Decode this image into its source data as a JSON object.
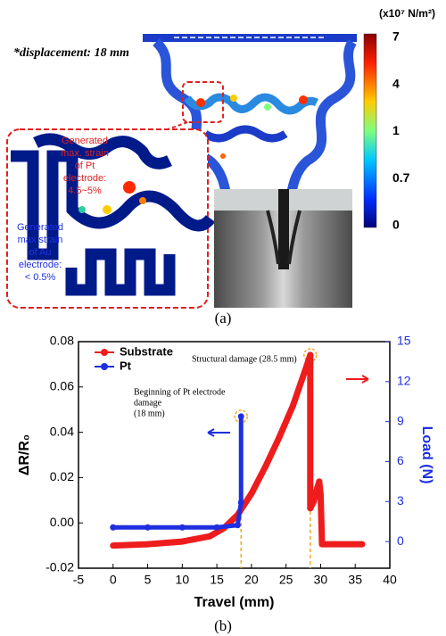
{
  "panel_a": {
    "displacement": "*displacement: 18 mm",
    "colorbar_unit": "(x10⁷ N/m²)",
    "colorbar_labels": [
      7,
      4,
      1,
      0.7,
      0
    ],
    "pt_callout": [
      "Generated",
      "max. strain",
      "of Pt",
      "electrode:",
      "4.5~5%"
    ],
    "au_callout": [
      "Generated",
      "max strain",
      "of Au",
      "electrode:",
      "< 0.5%"
    ],
    "label": "(a)"
  },
  "panel_b_label": "(b)",
  "chart_data": {
    "type": "line",
    "xlabel": "Travel (mm)",
    "ylabel": "ΔR/R₀",
    "y2label": "Load (N)",
    "xlim": [
      -5,
      40
    ],
    "xticks": [
      -5,
      0,
      5,
      10,
      15,
      20,
      25,
      30,
      35,
      40
    ],
    "ylim": [
      -0.02,
      0.08
    ],
    "yticks": [
      -0.02,
      {
        "value": 0,
        "label": "0.00"
      },
      0.02,
      0.04,
      0.06,
      0.08
    ],
    "y2lim": [
      -2,
      15
    ],
    "y2ticks": [
      0,
      3,
      6,
      9,
      12,
      15
    ],
    "legend": "upper left",
    "reference_lines": [
      18.5,
      28.5
    ],
    "annotations": [
      [
        "Structural damage (28.5 mm)"
      ],
      [
        "Beginning  of Pt electrode",
        "damage",
        "(18 mm)"
      ]
    ],
    "series": [
      {
        "name": "Substrate",
        "color": "#ee1c1c",
        "axis": "y2",
        "x": [
          0,
          5,
          10,
          14,
          16,
          18,
          20,
          22,
          24,
          26,
          28,
          28.5,
          28.5,
          29,
          29.5,
          29.8,
          30,
          30.2,
          32,
          36
        ],
        "values": [
          -0.3,
          -0.2,
          0,
          0.4,
          1,
          2,
          3.6,
          5.6,
          7.8,
          10.2,
          13.2,
          14,
          2.5,
          3,
          4,
          4.5,
          3.5,
          -0.2,
          -0.2,
          -0.2
        ]
      },
      {
        "name": "Pt",
        "color": "#1f2fe0",
        "axis": "y",
        "x": [
          0,
          5,
          10,
          15,
          18,
          18.5,
          18.5
        ],
        "values": [
          -0.002,
          -0.002,
          -0.002,
          -0.002,
          -0.001,
          0.009,
          0.047
        ]
      }
    ]
  }
}
